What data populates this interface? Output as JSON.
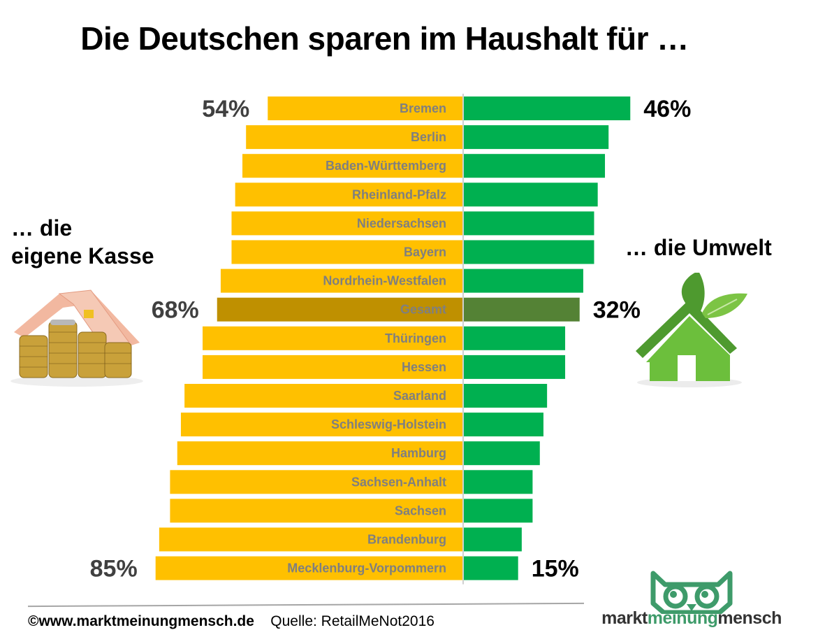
{
  "title": "Die Deutschen sparen im Haushalt für …",
  "left_label": [
    "… die",
    "eigene Kasse"
  ],
  "right_label": "… die  Umwelt",
  "footer": {
    "copyright": "©www.marktmeinungmensch.de",
    "source": "Quelle: RetailMeNot2016"
  },
  "logo": {
    "word1": "markt",
    "word2": "meinung",
    "word3": "mensch"
  },
  "icons": {
    "left": "money-house-icon",
    "right": "eco-house-icon",
    "logo": "owl-logo-icon"
  },
  "colors": {
    "own": "#FFC000",
    "env": "#00B050",
    "own_total": "#BF9000",
    "env_total": "#548235",
    "bar_label": "#7F7F7F",
    "center_line": "#D0D0D0",
    "logo_green": "#3E9B6A",
    "logo_dark": "#333333"
  },
  "chart_data": {
    "type": "bar",
    "orientation": "diverging-horizontal",
    "title": "Die Deutschen sparen im Haushalt für …",
    "xlabel": "",
    "ylabel": "",
    "xlim": [
      0,
      100
    ],
    "grid": false,
    "categories": [
      "Bremen",
      "Berlin",
      "Baden-Württemberg",
      "Rheinland-Pfalz",
      "Niedersachsen",
      "Bayern",
      "Nordrhein-Westfalen",
      "Gesamt",
      "Thüringen",
      "Hessen",
      "Saarland",
      "Schleswig-Holstein",
      "Hamburg",
      "Sachsen-Anhalt",
      "Sachsen",
      "Brandenburg",
      "Mecklenburg-Vorpommern"
    ],
    "highlight": "Gesamt",
    "series": [
      {
        "name": "… die eigene Kasse",
        "side": "left",
        "values": [
          54,
          60,
          61,
          63,
          64,
          64,
          67,
          68,
          72,
          72,
          77,
          78,
          79,
          81,
          81,
          84,
          85
        ]
      },
      {
        "name": "… die Umwelt",
        "side": "right",
        "values": [
          46,
          40,
          39,
          37,
          36,
          36,
          33,
          32,
          28,
          28,
          23,
          22,
          21,
          19,
          19,
          16,
          15
        ]
      }
    ],
    "data_labels": [
      {
        "category": "Bremen",
        "left": "54%",
        "right": "46%"
      },
      {
        "category": "Gesamt",
        "left": "68%",
        "right": "32%"
      },
      {
        "category": "Mecklenburg-Vorpommern",
        "left": "85%",
        "right": "15%"
      }
    ]
  }
}
